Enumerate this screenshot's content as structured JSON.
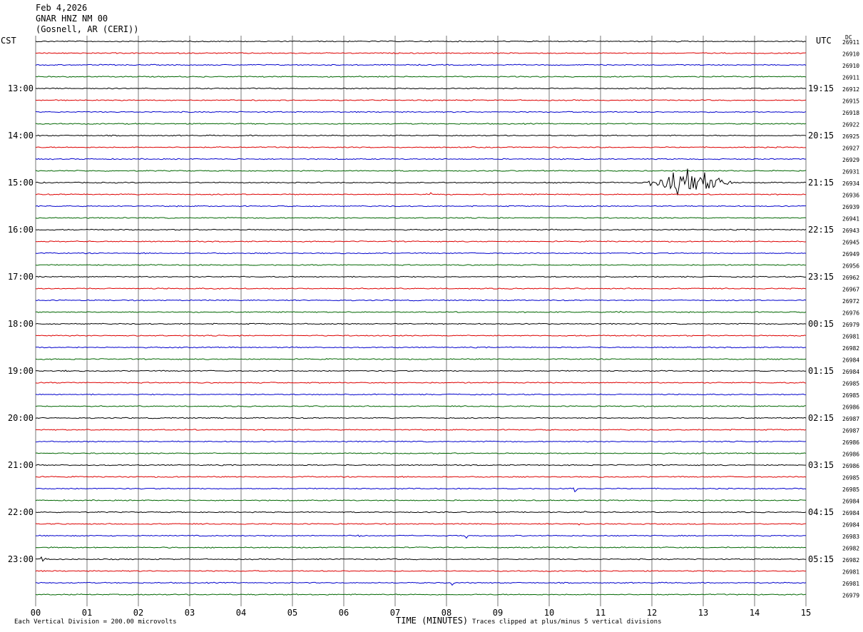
{
  "header": {
    "date": "Feb 4,2026",
    "station": "GNAR HNZ NM 00",
    "location": "(Gosnell, AR (CERI))"
  },
  "axes": {
    "left_title": "CST",
    "right_title": "UTC",
    "dc_title": "DC",
    "x_title": "TIME (MINUTES)"
  },
  "footer": {
    "scale_note": "Each Vertical Division =  200.00 microvolts",
    "clip_note": "Traces clipped at plus/minus 5 vertical divisions"
  },
  "colors": {
    "trace_cycle": [
      "#000000",
      "#dd0000",
      "#0000cc",
      "#006600"
    ],
    "grid_vertical": "#777777"
  },
  "chart_data": {
    "type": "line",
    "title": "GNAR HNZ NM 00",
    "xlabel": "TIME (MINUTES)",
    "xlim": [
      0,
      15
    ],
    "x_ticks": [
      "00",
      "01",
      "02",
      "03",
      "04",
      "05",
      "06",
      "07",
      "08",
      "09",
      "10",
      "11",
      "12",
      "13",
      "14",
      "15"
    ],
    "traces_per_hour": 4,
    "trace_count": 48,
    "left_hour_labels": [
      {
        "row": 4,
        "label": "13:00"
      },
      {
        "row": 8,
        "label": "14:00"
      },
      {
        "row": 12,
        "label": "15:00"
      },
      {
        "row": 16,
        "label": "16:00"
      },
      {
        "row": 20,
        "label": "17:00"
      },
      {
        "row": 24,
        "label": "18:00"
      },
      {
        "row": 28,
        "label": "19:00"
      },
      {
        "row": 32,
        "label": "20:00"
      },
      {
        "row": 36,
        "label": "21:00"
      },
      {
        "row": 40,
        "label": "22:00"
      },
      {
        "row": 44,
        "label": "23:00"
      }
    ],
    "right_hour_labels": [
      {
        "row": 4,
        "label": "19:15"
      },
      {
        "row": 8,
        "label": "20:15"
      },
      {
        "row": 12,
        "label": "21:15"
      },
      {
        "row": 16,
        "label": "22:15"
      },
      {
        "row": 20,
        "label": "23:15"
      },
      {
        "row": 24,
        "label": "00:15"
      },
      {
        "row": 28,
        "label": "01:15"
      },
      {
        "row": 32,
        "label": "02:15"
      },
      {
        "row": 36,
        "label": "03:15"
      },
      {
        "row": 40,
        "label": "04:15"
      },
      {
        "row": 44,
        "label": "05:15"
      }
    ],
    "dc_offsets": [
      "26911",
      "26910",
      "26910",
      "26911",
      "26912",
      "26915",
      "26918",
      "26922",
      "26925",
      "26927",
      "26929",
      "26931",
      "26934",
      "26936",
      "26939",
      "26941",
      "26943",
      "26945",
      "26949",
      "26956",
      "26962",
      "26967",
      "26972",
      "26976",
      "26979",
      "26981",
      "26982",
      "26984",
      "26984",
      "26985",
      "26985",
      "26986",
      "26987",
      "26987",
      "26986",
      "26986",
      "26986",
      "26985",
      "26985",
      "26984",
      "26984",
      "26984",
      "26983",
      "26982",
      "26982",
      "26981",
      "26981",
      "26979"
    ],
    "events": [
      {
        "row": 12,
        "minute": 12.7,
        "amplitude": 2.8,
        "width": 0.9
      },
      {
        "row": 13,
        "minute": 7.65,
        "amplitude": 0.8,
        "width": 0.08
      },
      {
        "row": 38,
        "minute": 10.5,
        "amplitude": 0.7,
        "width": 0.06
      },
      {
        "row": 40,
        "minute": 10.7,
        "amplitude": 0.3,
        "width": 0.04
      },
      {
        "row": 41,
        "minute": 10.6,
        "amplitude": 0.4,
        "width": 0.04
      },
      {
        "row": 42,
        "minute": 8.4,
        "amplitude": 0.6,
        "width": 0.06
      },
      {
        "row": 42,
        "minute": 6.3,
        "amplitude": 0.3,
        "width": 0.05
      },
      {
        "row": 44,
        "minute": 0.15,
        "amplitude": 3.0,
        "width": 0.05
      },
      {
        "row": 46,
        "minute": 0.15,
        "amplitude": 1.0,
        "width": 0.05
      },
      {
        "row": 46,
        "minute": 8.1,
        "amplitude": 0.5,
        "width": 0.05
      },
      {
        "row": 47,
        "minute": 12.35,
        "amplitude": 0.5,
        "width": 0.06
      },
      {
        "row": 28,
        "minute": 0.6,
        "amplitude": 0.3,
        "width": 0.03
      },
      {
        "row": 23,
        "minute": 11.4,
        "amplitude": 0.3,
        "width": 0.15
      }
    ]
  }
}
